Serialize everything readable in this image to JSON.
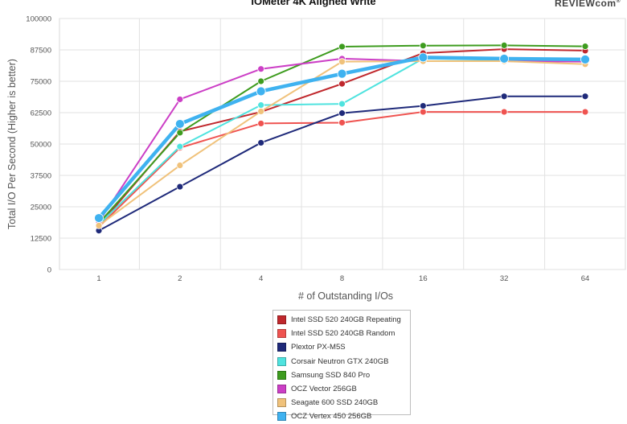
{
  "brand": {
    "text": "REVIEW",
    "suffix": "com",
    "mark": "®"
  },
  "chart_data": {
    "type": "line",
    "title": "IOMeter 4K Aligned Write",
    "xlabel": "# of Outstanding I/Os",
    "ylabel": "Total I/O Per Second (Higher is better)",
    "categories": [
      "1",
      "2",
      "4",
      "8",
      "16",
      "32",
      "64"
    ],
    "ylim": [
      0,
      100000
    ],
    "yticks": [
      0,
      12500,
      25000,
      37500,
      50000,
      62500,
      75000,
      87500,
      100000
    ],
    "grid": true,
    "legend_position": "bottom",
    "series": [
      {
        "name": "Intel SSD 520 240GB Repeating",
        "color": "#c0282d",
        "values": [
          17500,
          55000,
          62800,
          74000,
          86200,
          87800,
          87200
        ]
      },
      {
        "name": "Intel SSD 520 240GB Random",
        "color": "#ef5350",
        "values": [
          17000,
          48500,
          58200,
          58500,
          62800,
          62800,
          62800
        ]
      },
      {
        "name": "Plextor PX-M5S",
        "color": "#1f2a7a",
        "values": [
          15500,
          33000,
          50500,
          62300,
          65200,
          69000,
          69000
        ]
      },
      {
        "name": "Corsair Neutron GTX 240GB",
        "color": "#4fe3df",
        "values": [
          18000,
          49000,
          65500,
          66000,
          84000,
          83500,
          83500
        ]
      },
      {
        "name": "Samsung SSD 840 Pro",
        "color": "#3e9c1f",
        "values": [
          18500,
          54500,
          75000,
          88800,
          89200,
          89300,
          88900
        ]
      },
      {
        "name": "OCZ Vector 256GB",
        "color": "#cc3fc6",
        "values": [
          19000,
          67800,
          79900,
          84000,
          83000,
          83000,
          82800
        ]
      },
      {
        "name": "Seagate 600 SSD 240GB",
        "color": "#f0c27b",
        "values": [
          17500,
          41500,
          63000,
          82800,
          83000,
          83000,
          81800
        ]
      },
      {
        "name": "OCZ Vertex 450 256GB",
        "color": "#3fb2f0",
        "values": [
          20500,
          58000,
          71000,
          78000,
          84500,
          84000,
          83700
        ]
      }
    ]
  }
}
